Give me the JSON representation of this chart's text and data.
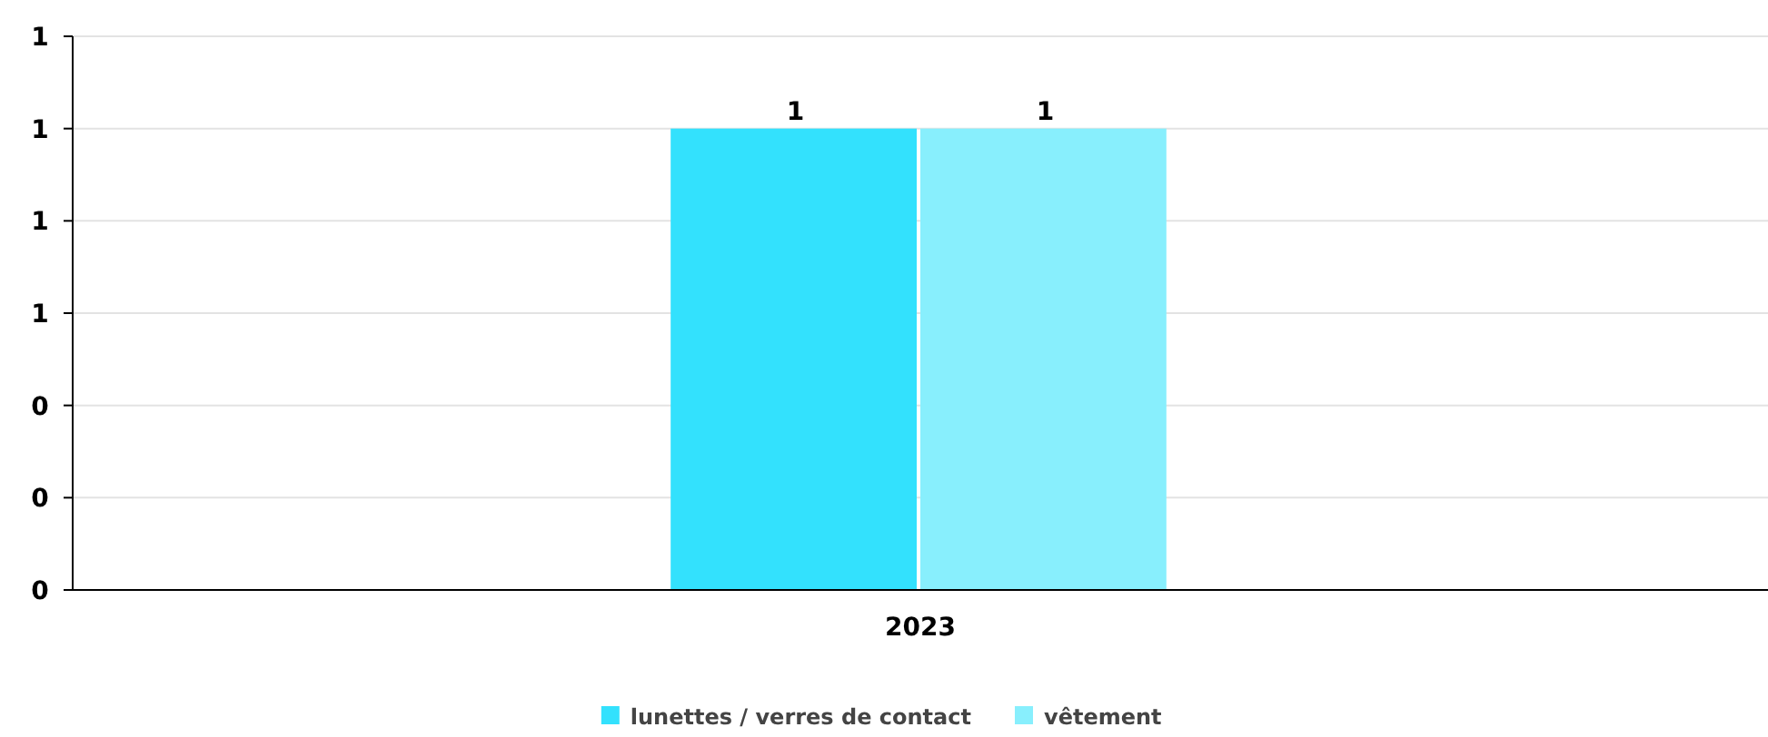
{
  "chart_data": {
    "type": "bar",
    "categories": [
      "2023"
    ],
    "series": [
      {
        "name": "lunettes / verres de contact",
        "color": "#33e1fd",
        "values": [
          1
        ]
      },
      {
        "name": "vêtement",
        "color": "#88effd",
        "values": [
          1
        ]
      }
    ],
    "ylim": [
      0,
      1.2
    ],
    "yticks": [
      {
        "value": 0,
        "label": "0"
      },
      {
        "value": 0.2,
        "label": "0"
      },
      {
        "value": 0.4,
        "label": "0"
      },
      {
        "value": 0.6,
        "label": "1"
      },
      {
        "value": 0.8,
        "label": "1"
      },
      {
        "value": 1,
        "label": "1"
      },
      {
        "value": 1.2,
        "label": "1"
      }
    ],
    "grid": "y",
    "legend": "bottom",
    "data_labels": true
  }
}
